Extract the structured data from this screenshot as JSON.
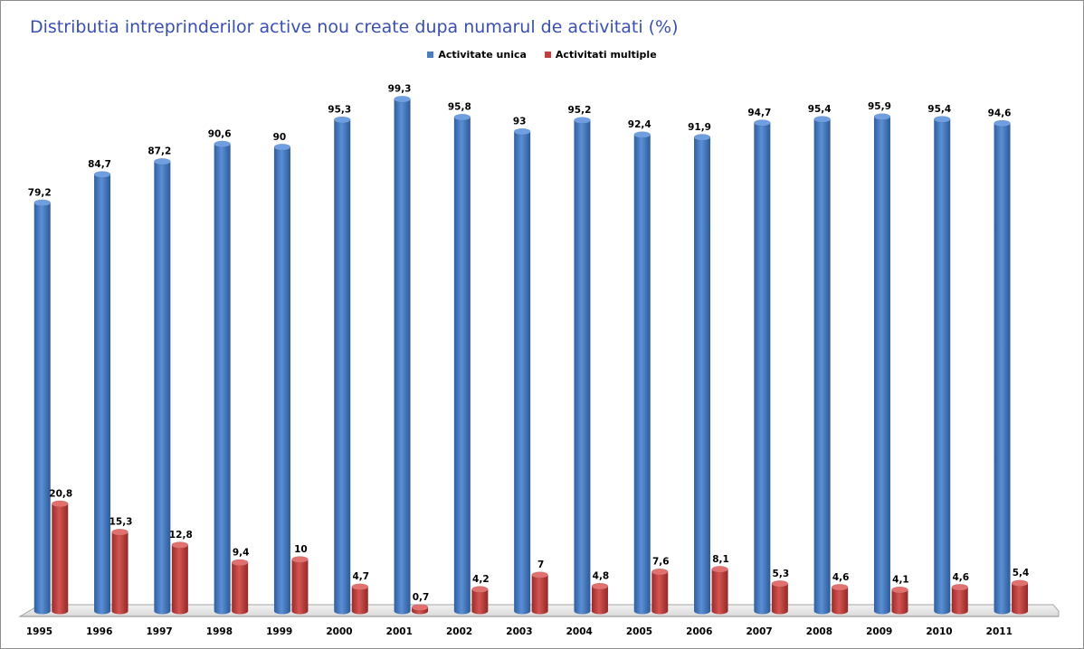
{
  "chart_data": {
    "type": "bar",
    "title": "Distributia intreprinderilor active nou create dupa numarul de activitati (%)",
    "xlabel": "",
    "ylabel": "",
    "ylim": [
      0,
      100
    ],
    "grid": false,
    "legend_position": "top-center",
    "categories": [
      "1995",
      "1996",
      "1997",
      "1998",
      "1999",
      "2000",
      "2001",
      "2002",
      "2003",
      "2004",
      "2005",
      "2006",
      "2007",
      "2008",
      "2009",
      "2010",
      "2011"
    ],
    "series": [
      {
        "name": "Activitate unica",
        "color": "#4a7ec4",
        "values": [
          79.2,
          84.7,
          87.2,
          90.6,
          90,
          95.3,
          99.3,
          95.8,
          93,
          95.2,
          92.4,
          91.9,
          94.7,
          95.4,
          95.9,
          95.4,
          94.6
        ],
        "labels": [
          "79,2",
          "84,7",
          "87,2",
          "90,6",
          "90",
          "95,3",
          "99,3",
          "95,8",
          "93",
          "95,2",
          "92,4",
          "91,9",
          "94,7",
          "95,4",
          "95,9",
          "95,4",
          "94,6"
        ]
      },
      {
        "name": "Activitati multiple",
        "color": "#c0403d",
        "values": [
          20.8,
          15.3,
          12.8,
          9.4,
          10,
          4.7,
          0.7,
          4.2,
          7,
          4.8,
          7.6,
          8.1,
          5.3,
          4.6,
          4.1,
          4.6,
          5.4
        ],
        "labels": [
          "20,8",
          "15,3",
          "12,8",
          "9,4",
          "10",
          "4,7",
          "0,7",
          "4,2",
          "7",
          "4,8",
          "7,6",
          "8,1",
          "5,3",
          "4,6",
          "4,1",
          "4,6",
          "5,4"
        ]
      }
    ]
  }
}
